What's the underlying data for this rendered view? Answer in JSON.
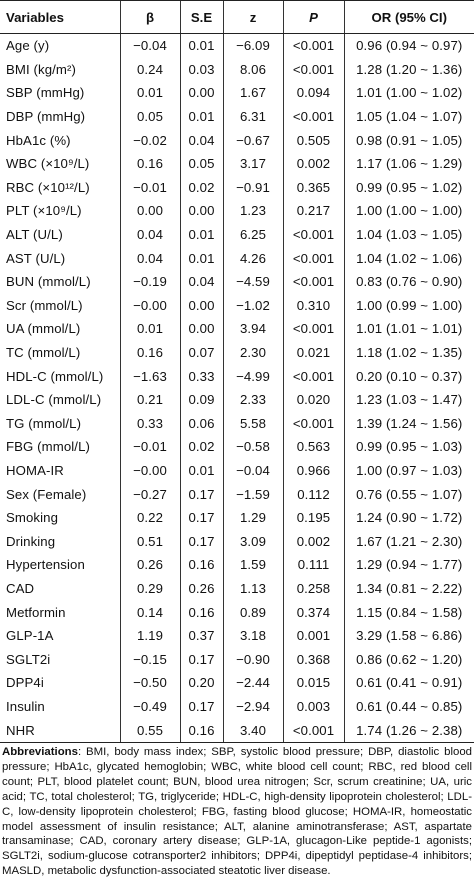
{
  "table": {
    "headers": [
      "Variables",
      "β",
      "S.E",
      "z",
      "P",
      "OR (95% CI)"
    ],
    "rows": [
      [
        "Age (y)",
        "−0.04",
        "0.01",
        "−6.09",
        "<0.001",
        "0.96 (0.94 ~ 0.97)"
      ],
      [
        "BMI (kg/m²)",
        "0.24",
        "0.03",
        "8.06",
        "<0.001",
        "1.28 (1.20 ~ 1.36)"
      ],
      [
        "SBP (mmHg)",
        "0.01",
        "0.00",
        "1.67",
        "0.094",
        "1.01 (1.00 ~ 1.02)"
      ],
      [
        "DBP (mmHg)",
        "0.05",
        "0.01",
        "6.31",
        "<0.001",
        "1.05 (1.04 ~ 1.07)"
      ],
      [
        "HbA1c (%)",
        "−0.02",
        "0.04",
        "−0.67",
        "0.505",
        "0.98 (0.91 ~ 1.05)"
      ],
      [
        "WBC (×10⁹/L)",
        "0.16",
        "0.05",
        "3.17",
        "0.002",
        "1.17 (1.06 ~ 1.29)"
      ],
      [
        "RBC (×10¹²/L)",
        "−0.01",
        "0.02",
        "−0.91",
        "0.365",
        "0.99 (0.95 ~ 1.02)"
      ],
      [
        "PLT (×10⁹/L)",
        "0.00",
        "0.00",
        "1.23",
        "0.217",
        "1.00 (1.00 ~ 1.00)"
      ],
      [
        "ALT (U/L)",
        "0.04",
        "0.01",
        "6.25",
        "<0.001",
        "1.04 (1.03 ~ 1.05)"
      ],
      [
        "AST (U/L)",
        "0.04",
        "0.01",
        "4.26",
        "<0.001",
        "1.04 (1.02 ~ 1.06)"
      ],
      [
        "BUN (mmol/L)",
        "−0.19",
        "0.04",
        "−4.59",
        "<0.001",
        "0.83 (0.76 ~ 0.90)"
      ],
      [
        "Scr (mmol/L)",
        "−0.00",
        "0.00",
        "−1.02",
        "0.310",
        "1.00 (0.99 ~ 1.00)"
      ],
      [
        "UA (mmol/L)",
        "0.01",
        "0.00",
        "3.94",
        "<0.001",
        "1.01 (1.01 ~ 1.01)"
      ],
      [
        "TC (mmol/L)",
        "0.16",
        "0.07",
        "2.30",
        "0.021",
        "1.18 (1.02 ~ 1.35)"
      ],
      [
        "HDL-C (mmol/L)",
        "−1.63",
        "0.33",
        "−4.99",
        "<0.001",
        "0.20 (0.10 ~ 0.37)"
      ],
      [
        "LDL-C (mmol/L)",
        "0.21",
        "0.09",
        "2.33",
        "0.020",
        "1.23 (1.03 ~ 1.47)"
      ],
      [
        "TG (mmol/L)",
        "0.33",
        "0.06",
        "5.58",
        "<0.001",
        "1.39 (1.24 ~ 1.56)"
      ],
      [
        "FBG (mmol/L)",
        "−0.01",
        "0.02",
        "−0.58",
        "0.563",
        "0.99 (0.95 ~ 1.03)"
      ],
      [
        "HOMA-IR",
        "−0.00",
        "0.01",
        "−0.04",
        "0.966",
        "1.00 (0.97 ~ 1.03)"
      ],
      [
        "Sex (Female)",
        "−0.27",
        "0.17",
        "−1.59",
        "0.112",
        "0.76 (0.55 ~ 1.07)"
      ],
      [
        "Smoking",
        "0.22",
        "0.17",
        "1.29",
        "0.195",
        "1.24 (0.90 ~ 1.72)"
      ],
      [
        "Drinking",
        "0.51",
        "0.17",
        "3.09",
        "0.002",
        "1.67 (1.21 ~ 2.30)"
      ],
      [
        "Hypertension",
        "0.26",
        "0.16",
        "1.59",
        "0.111",
        "1.29 (0.94 ~ 1.77)"
      ],
      [
        "CAD",
        "0.29",
        "0.26",
        "1.13",
        "0.258",
        "1.34 (0.81 ~ 2.22)"
      ],
      [
        "Metformin",
        "0.14",
        "0.16",
        "0.89",
        "0.374",
        "1.15 (0.84 ~ 1.58)"
      ],
      [
        "GLP-1A",
        "1.19",
        "0.37",
        "3.18",
        "0.001",
        "3.29 (1.58 ~ 6.86)"
      ],
      [
        "SGLT2i",
        "−0.15",
        "0.17",
        "−0.90",
        "0.368",
        "0.86 (0.62 ~ 1.20)"
      ],
      [
        "DPP4i",
        "−0.50",
        "0.20",
        "−2.44",
        "0.015",
        "0.61 (0.41 ~ 0.91)"
      ],
      [
        "Insulin",
        "−0.49",
        "0.17",
        "−2.94",
        "0.003",
        "0.61 (0.44 ~ 0.85)"
      ],
      [
        "NHR",
        "0.55",
        "0.16",
        "3.40",
        "<0.001",
        "1.74 (1.26 ~ 2.38)"
      ]
    ]
  },
  "notes": {
    "label": "Abbreviations",
    "text": ": BMI, body mass index; SBP, systolic blood pressure; DBP, diastolic blood pressure; HbA1c, glycated hemoglobin; WBC, white blood cell count; RBC, red blood cell count; PLT, blood platelet count; BUN, blood urea nitrogen; Scr, scrum creatinine; UA, uric acid; TC, total cholesterol; TG, triglyceride; HDL-C, high-density lipoprotein cholesterol; LDL-C, low-density lipoprotein cholesterol; FBG, fasting blood glucose; HOMA-IR, homeostatic model assessment of insulin resistance; ALT, alanine aminotransferase; AST, aspartate transaminase; CAD, coronary artery disease; GLP-1A, glucagon-Like peptide-1 agonists; SGLT2i, sodium-glucose cotransporter2 inhibitors; DPP4i, dipeptidyl peptidase-4 inhibitors; MASLD, metabolic dysfunction-associated steatotic liver disease."
  }
}
